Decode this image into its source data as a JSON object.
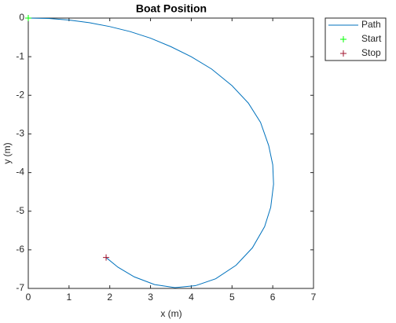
{
  "chart_data": {
    "type": "line",
    "title": "Boat Position",
    "x_label": "x (m)",
    "y_label": "y (m)",
    "xlim": [
      0,
      7
    ],
    "ylim": [
      -7,
      0
    ],
    "xticks": [
      0,
      1,
      2,
      3,
      4,
      5,
      6,
      7
    ],
    "yticks": [
      0,
      -1,
      -2,
      -3,
      -4,
      -5,
      -6,
      -7
    ],
    "legend": "outside-top-right",
    "series": [
      {
        "name": "Path",
        "color": "#0072bd",
        "marker": "none",
        "x": [
          0,
          0.5,
          1.0,
          1.5,
          2.0,
          2.5,
          3.0,
          3.5,
          4.0,
          4.5,
          5.0,
          5.4,
          5.7,
          5.9,
          6.0,
          6.02,
          5.95,
          5.8,
          5.5,
          5.1,
          4.6,
          4.1,
          3.6,
          3.1,
          2.6,
          2.2,
          1.91
        ],
        "y": [
          0,
          -0.01,
          -0.05,
          -0.12,
          -0.22,
          -0.35,
          -0.52,
          -0.74,
          -1.0,
          -1.32,
          -1.75,
          -2.2,
          -2.7,
          -3.3,
          -3.8,
          -4.3,
          -4.9,
          -5.4,
          -5.95,
          -6.4,
          -6.75,
          -6.93,
          -6.98,
          -6.9,
          -6.7,
          -6.45,
          -6.2
        ]
      },
      {
        "name": "Start",
        "color": "#00ff00",
        "marker": "+",
        "x": [
          0
        ],
        "y": [
          0
        ]
      },
      {
        "name": "Stop",
        "color": "#a2142f",
        "marker": "+",
        "x": [
          1.91
        ],
        "y": [
          -6.2
        ]
      }
    ]
  }
}
